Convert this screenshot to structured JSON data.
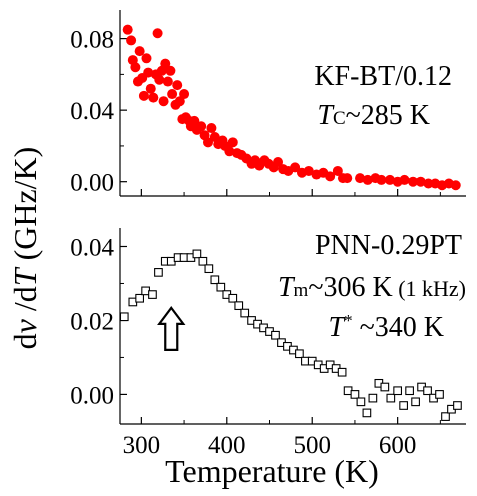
{
  "chart_data": [
    {
      "type": "scatter",
      "annotation_lines": [
        "KF-BT/0.12",
        "Tc~285 K"
      ],
      "annotation_parts": {
        "line1": "KF-BT/0.12",
        "tc_symbol": "T",
        "tc_sub": "C",
        "tc_rest": "~285 K"
      },
      "ylim": [
        -0.008,
        0.096
      ],
      "xlim": [
        275,
        680
      ],
      "y_ticks": [
        0.0,
        0.04,
        0.08
      ],
      "y_tick_labels": [
        "0.00",
        "0.04",
        "0.08"
      ],
      "marker": "filled-circle",
      "color": "#ff0000",
      "series": [
        {
          "x": [
            284,
            288,
            290,
            293,
            296,
            298,
            301,
            303,
            306,
            308,
            311,
            314,
            317,
            319,
            321,
            324,
            326,
            328,
            331,
            334,
            336,
            340,
            342,
            345,
            348,
            350,
            352,
            356,
            358,
            362,
            365,
            370,
            374,
            378,
            382,
            386,
            390,
            395,
            398,
            403,
            407,
            412,
            417,
            423,
            429,
            433,
            438,
            444,
            449,
            455,
            460,
            466,
            472,
            480,
            488,
            496,
            505,
            513,
            521,
            530,
            536,
            541,
            556,
            565,
            574,
            581,
            591,
            600,
            608,
            618,
            627,
            636,
            644,
            652,
            660,
            668
          ],
          "y": [
            0.085,
            0.079,
            0.068,
            0.064,
            0.056,
            0.073,
            0.058,
            0.048,
            0.069,
            0.061,
            0.052,
            0.047,
            0.06,
            0.083,
            0.057,
            0.062,
            0.045,
            0.066,
            0.056,
            0.062,
            0.049,
            0.043,
            0.054,
            0.045,
            0.035,
            0.049,
            0.036,
            0.034,
            0.031,
            0.034,
            0.029,
            0.031,
            0.026,
            0.022,
            0.03,
            0.025,
            0.021,
            0.023,
            0.02,
            0.017,
            0.022,
            0.016,
            0.015,
            0.013,
            0.01,
            0.012,
            0.009,
            0.012,
            0.01,
            0.008,
            0.011,
            0.007,
            0.006,
            0.008,
            0.005,
            0.006,
            0.004,
            0.005,
            0.003,
            0.006,
            0.002,
            0.002,
            0.002,
            0.001,
            0.002,
            0.001,
            0.001,
            0.0,
            0.001,
            0.0,
            0.0,
            -0.001,
            -0.001,
            -0.002,
            -0.001,
            -0.002
          ]
        }
      ]
    },
    {
      "type": "scatter",
      "annotation_parts": {
        "line1": "PNN-0.29PT",
        "tm_symbol": "T",
        "tm_sub": "m",
        "tm_rest": "~306 K",
        "tm_freq": " (1 kHz)",
        "ts_symbol": "T",
        "ts_sup": "*",
        "ts_rest": " ~340 K"
      },
      "annotation_lines": [
        "PNN-0.29PT",
        "Tm~306 K (1 kHz)",
        "T* ~340 K"
      ],
      "ylim": [
        -0.008,
        0.045
      ],
      "xlim": [
        275,
        680
      ],
      "y_ticks": [
        0.0,
        0.02,
        0.04
      ],
      "y_tick_labels": [
        "0.00",
        "0.02",
        "0.04"
      ],
      "x_ticks": [
        300,
        400,
        500,
        600
      ],
      "x_tick_labels": [
        "300",
        "400",
        "500",
        "600"
      ],
      "xlabel": "Temperature (K)",
      "marker": "open-square",
      "color": "#000000",
      "arrow_at": {
        "x": 335,
        "y": 0.018
      },
      "series": [
        {
          "x": [
            280,
            290,
            298,
            305,
            313,
            320,
            328,
            335,
            343,
            350,
            358,
            365,
            372,
            379,
            386,
            393,
            400,
            407,
            414,
            421,
            429,
            436,
            443,
            450,
            457,
            464,
            471,
            478,
            485,
            492,
            500,
            507,
            514,
            521,
            528,
            535,
            542,
            550,
            557,
            564,
            571,
            578,
            585,
            592,
            600,
            607,
            614,
            621,
            628,
            635,
            642,
            649,
            656,
            663,
            670
          ],
          "y": [
            0.021,
            0.025,
            0.026,
            0.028,
            0.027,
            0.033,
            0.036,
            0.036,
            0.037,
            0.037,
            0.037,
            0.038,
            0.036,
            0.034,
            0.031,
            0.029,
            0.027,
            0.026,
            0.024,
            0.022,
            0.02,
            0.019,
            0.018,
            0.017,
            0.016,
            0.014,
            0.013,
            0.012,
            0.011,
            0.009,
            0.009,
            0.008,
            0.007,
            0.008,
            0.007,
            0.006,
            0.001,
            0.0,
            -0.002,
            -0.005,
            -0.001,
            0.003,
            0.002,
            -0.001,
            0.001,
            -0.003,
            0.001,
            -0.002,
            0.002,
            0.001,
            -0.001,
            0.0,
            -0.006,
            -0.004,
            -0.003
          ]
        }
      ]
    }
  ],
  "shared_ylabel": {
    "d": "d",
    "nu": "ν",
    "slash_d": " /d",
    "T": "T",
    "units": " (GHz/K)"
  }
}
